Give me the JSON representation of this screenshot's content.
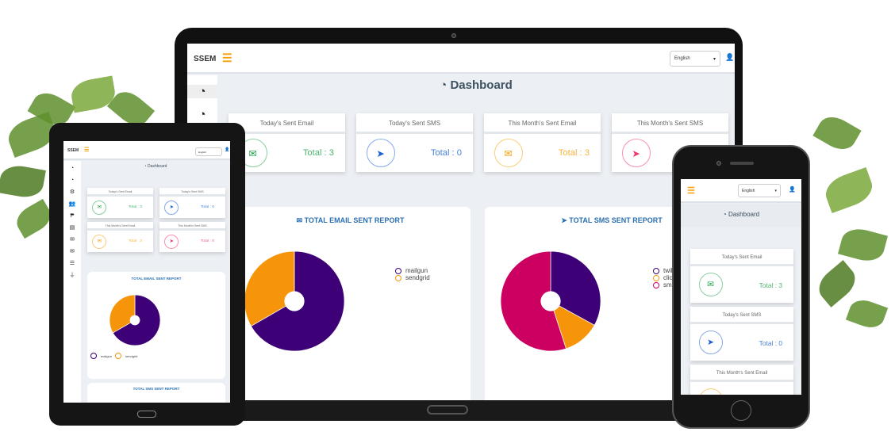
{
  "app": {
    "brand": "SSEM",
    "language": "English",
    "page_title": "Dashboard"
  },
  "colors": {
    "green": "#1fa34a",
    "blue": "#1a5fd6",
    "orange": "#f7a10a",
    "pink": "#f0336a",
    "purple": "#3d0077",
    "magenta": "#cc0060"
  },
  "icons": {
    "menu": "hamburger-icon",
    "dashboard": "tachometer-icon",
    "email": "envelope-icon",
    "sms": "paper-plane-icon",
    "user": "user-icon"
  },
  "cards": [
    {
      "title": "Today's Sent Email",
      "total": "Total : 3",
      "color": "#1fa34a",
      "icon": "✉"
    },
    {
      "title": "Today's Sent SMS",
      "total": "Total : 0",
      "color": "#1a5fd6",
      "icon": "➤"
    },
    {
      "title": "This Month's Sent Email",
      "total": "Total : 3",
      "color": "#f7a10a",
      "icon": "✉"
    },
    {
      "title": "This Month's Sent SMS",
      "total": "Total : 0",
      "color": "#f0336a",
      "icon": "➤"
    }
  ],
  "reports": {
    "email_title": "TOTAL EMAIL SENT REPORT",
    "sms_title": "TOTAL SMS SENT REPORT"
  },
  "chart_data": [
    {
      "type": "pie",
      "title": "TOTAL EMAIL SENT REPORT",
      "categories": [
        "mailgun",
        "sendgrid"
      ],
      "values": [
        2,
        1
      ],
      "colors": [
        "#3d0077",
        "#f7950a"
      ]
    },
    {
      "type": "pie",
      "title": "TOTAL SMS SENT REPORT",
      "categories": [
        "twili",
        "click",
        "smsg"
      ],
      "values": [
        33,
        12,
        55
      ],
      "colors": [
        "#3d0077",
        "#f7950a",
        "#cc0060"
      ]
    }
  ]
}
